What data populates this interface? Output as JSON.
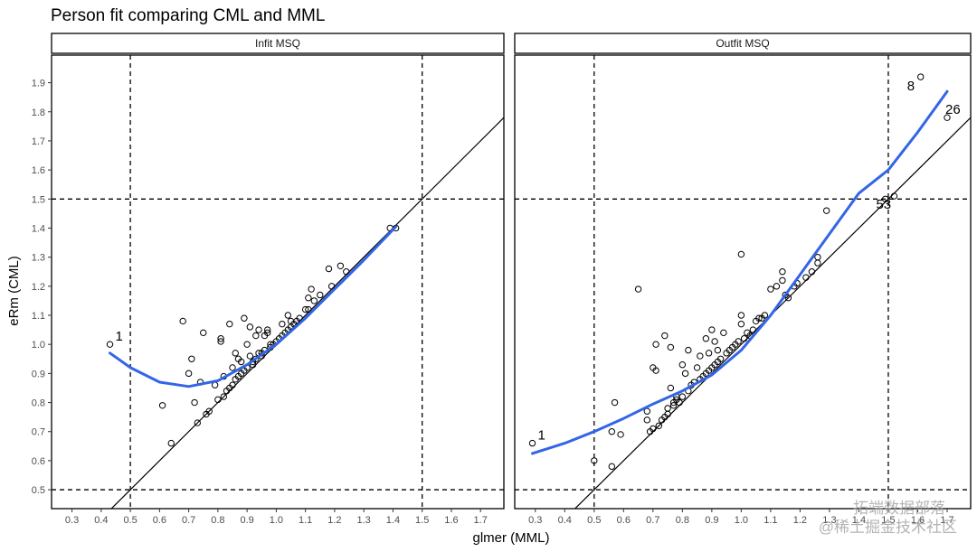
{
  "chart_data": {
    "type": "scatter",
    "title": "Person fit comparing CML and MML",
    "xlabel": "glmer (MML)",
    "ylabel": "eRm (CML)",
    "xlim": [
      0.23,
      1.78
    ],
    "ylim": [
      0.435,
      1.995
    ],
    "xticks": [
      0.3,
      0.4,
      0.5,
      0.6,
      0.7,
      0.8,
      0.9,
      1.0,
      1.1,
      1.2,
      1.3,
      1.4,
      1.5,
      1.6,
      1.7
    ],
    "xtick_labels": [
      "0.3",
      "0.4",
      "0.5",
      "0.6",
      "0.7",
      "0.8",
      "0.9",
      "1.0",
      "1.1",
      "1.2",
      "1.3",
      "1.4",
      "1.5",
      "1.6",
      "1.7"
    ],
    "yticks": [
      0.5,
      0.6,
      0.7,
      0.8,
      0.9,
      1.0,
      1.1,
      1.2,
      1.3,
      1.4,
      1.5,
      1.6,
      1.7,
      1.8,
      1.9
    ],
    "ytick_labels": [
      "0.5",
      "0.6",
      "0.7",
      "0.8",
      "0.9",
      "1.0",
      "1.1",
      "1.2",
      "1.3",
      "1.4",
      "1.5",
      "1.6",
      "1.7",
      "1.8",
      "1.9"
    ],
    "reference_lines": {
      "vertical": [
        0.5,
        1.5
      ],
      "horizontal": [
        0.5,
        1.5
      ],
      "identity": true
    },
    "smooth_color": "#3366e6",
    "panels": [
      {
        "name": "Infit MSQ",
        "points": [
          [
            0.43,
            1.0
          ],
          [
            0.61,
            0.79
          ],
          [
            0.64,
            0.66
          ],
          [
            0.68,
            1.08
          ],
          [
            0.7,
            0.9
          ],
          [
            0.71,
            0.95
          ],
          [
            0.72,
            0.8
          ],
          [
            0.73,
            0.73
          ],
          [
            0.74,
            0.87
          ],
          [
            0.75,
            1.04
          ],
          [
            0.76,
            0.76
          ],
          [
            0.77,
            0.77
          ],
          [
            0.79,
            0.86
          ],
          [
            0.8,
            0.81
          ],
          [
            0.81,
            1.01
          ],
          [
            0.81,
            1.02
          ],
          [
            0.82,
            0.82
          ],
          [
            0.82,
            0.89
          ],
          [
            0.83,
            0.84
          ],
          [
            0.84,
            1.07
          ],
          [
            0.84,
            0.85
          ],
          [
            0.85,
            0.86
          ],
          [
            0.85,
            0.92
          ],
          [
            0.86,
            0.88
          ],
          [
            0.86,
            0.97
          ],
          [
            0.87,
            0.95
          ],
          [
            0.87,
            0.89
          ],
          [
            0.88,
            0.9
          ],
          [
            0.88,
            0.94
          ],
          [
            0.89,
            1.09
          ],
          [
            0.89,
            0.91
          ],
          [
            0.9,
            0.92
          ],
          [
            0.9,
            1.0
          ],
          [
            0.91,
            0.96
          ],
          [
            0.91,
            1.06
          ],
          [
            0.92,
            0.93
          ],
          [
            0.92,
            0.94
          ],
          [
            0.93,
            0.95
          ],
          [
            0.93,
            1.03
          ],
          [
            0.94,
            1.05
          ],
          [
            0.94,
            0.97
          ],
          [
            0.95,
            0.96
          ],
          [
            0.95,
            0.97
          ],
          [
            0.96,
            1.03
          ],
          [
            0.96,
            0.98
          ],
          [
            0.97,
            1.04
          ],
          [
            0.97,
            1.05
          ],
          [
            0.98,
            0.99
          ],
          [
            0.98,
            1.0
          ],
          [
            0.99,
            1.0
          ],
          [
            1.0,
            1.01
          ],
          [
            1.01,
            1.02
          ],
          [
            1.02,
            1.07
          ],
          [
            1.02,
            1.03
          ],
          [
            1.03,
            1.04
          ],
          [
            1.04,
            1.05
          ],
          [
            1.04,
            1.1
          ],
          [
            1.05,
            1.06
          ],
          [
            1.05,
            1.08
          ],
          [
            1.06,
            1.07
          ],
          [
            1.07,
            1.08
          ],
          [
            1.08,
            1.09
          ],
          [
            1.1,
            1.12
          ],
          [
            1.11,
            1.16
          ],
          [
            1.11,
            1.12
          ],
          [
            1.12,
            1.19
          ],
          [
            1.13,
            1.15
          ],
          [
            1.15,
            1.17
          ],
          [
            1.18,
            1.26
          ],
          [
            1.19,
            1.2
          ],
          [
            1.22,
            1.27
          ],
          [
            1.24,
            1.25
          ],
          [
            1.39,
            1.4
          ],
          [
            1.41,
            1.4
          ]
        ],
        "smooth": [
          [
            0.43,
            0.97
          ],
          [
            0.5,
            0.92
          ],
          [
            0.6,
            0.87
          ],
          [
            0.7,
            0.855
          ],
          [
            0.8,
            0.875
          ],
          [
            0.9,
            0.93
          ],
          [
            1.0,
            1.0
          ],
          [
            1.1,
            1.09
          ],
          [
            1.2,
            1.19
          ],
          [
            1.3,
            1.29
          ],
          [
            1.41,
            1.405
          ]
        ],
        "labels": [
          {
            "text": "1",
            "x": 0.43,
            "y": 1.0
          }
        ]
      },
      {
        "name": "Outfit MSQ",
        "points": [
          [
            0.29,
            0.66
          ],
          [
            0.5,
            0.6
          ],
          [
            0.56,
            0.58
          ],
          [
            0.56,
            0.7
          ],
          [
            0.57,
            0.8
          ],
          [
            0.59,
            0.69
          ],
          [
            0.65,
            1.19
          ],
          [
            0.68,
            0.77
          ],
          [
            0.68,
            0.74
          ],
          [
            0.69,
            0.7
          ],
          [
            0.7,
            0.92
          ],
          [
            0.7,
            0.71
          ],
          [
            0.71,
            0.91
          ],
          [
            0.71,
            1.0
          ],
          [
            0.72,
            0.72
          ],
          [
            0.73,
            0.74
          ],
          [
            0.74,
            1.03
          ],
          [
            0.74,
            0.75
          ],
          [
            0.75,
            0.76
          ],
          [
            0.75,
            0.78
          ],
          [
            0.76,
            0.85
          ],
          [
            0.76,
            0.99
          ],
          [
            0.77,
            0.79
          ],
          [
            0.77,
            0.8
          ],
          [
            0.78,
            0.81
          ],
          [
            0.78,
            0.82
          ],
          [
            0.79,
            0.8
          ],
          [
            0.8,
            0.82
          ],
          [
            0.8,
            0.93
          ],
          [
            0.81,
            0.9
          ],
          [
            0.82,
            0.84
          ],
          [
            0.82,
            0.98
          ],
          [
            0.83,
            0.86
          ],
          [
            0.84,
            0.87
          ],
          [
            0.85,
            0.92
          ],
          [
            0.86,
            0.88
          ],
          [
            0.86,
            0.96
          ],
          [
            0.87,
            0.89
          ],
          [
            0.88,
            0.9
          ],
          [
            0.88,
            1.02
          ],
          [
            0.89,
            0.91
          ],
          [
            0.89,
            0.97
          ],
          [
            0.9,
            1.05
          ],
          [
            0.9,
            0.92
          ],
          [
            0.91,
            0.93
          ],
          [
            0.91,
            1.01
          ],
          [
            0.92,
            0.94
          ],
          [
            0.92,
            0.98
          ],
          [
            0.93,
            0.95
          ],
          [
            0.94,
            1.04
          ],
          [
            0.95,
            0.97
          ],
          [
            0.96,
            0.98
          ],
          [
            0.97,
            0.99
          ],
          [
            0.98,
            1.0
          ],
          [
            0.99,
            1.01
          ],
          [
            1.0,
            1.31
          ],
          [
            1.0,
            1.1
          ],
          [
            1.0,
            1.07
          ],
          [
            1.01,
            1.02
          ],
          [
            1.02,
            1.04
          ],
          [
            1.03,
            1.03
          ],
          [
            1.04,
            1.05
          ],
          [
            1.05,
            1.08
          ],
          [
            1.06,
            1.09
          ],
          [
            1.07,
            1.09
          ],
          [
            1.08,
            1.1
          ],
          [
            1.1,
            1.19
          ],
          [
            1.12,
            1.2
          ],
          [
            1.14,
            1.22
          ],
          [
            1.14,
            1.25
          ],
          [
            1.15,
            1.17
          ],
          [
            1.16,
            1.16
          ],
          [
            1.18,
            1.2
          ],
          [
            1.19,
            1.21
          ],
          [
            1.22,
            1.23
          ],
          [
            1.24,
            1.25
          ],
          [
            1.26,
            1.28
          ],
          [
            1.26,
            1.3
          ],
          [
            1.29,
            1.46
          ],
          [
            1.49,
            1.5
          ],
          [
            1.52,
            1.51
          ],
          [
            1.61,
            1.92
          ],
          [
            1.7,
            1.78
          ]
        ],
        "smooth": [
          [
            0.29,
            0.625
          ],
          [
            0.4,
            0.66
          ],
          [
            0.5,
            0.7
          ],
          [
            0.6,
            0.745
          ],
          [
            0.7,
            0.795
          ],
          [
            0.8,
            0.84
          ],
          [
            0.9,
            0.895
          ],
          [
            1.0,
            0.98
          ],
          [
            1.1,
            1.1
          ],
          [
            1.2,
            1.24
          ],
          [
            1.3,
            1.38
          ],
          [
            1.4,
            1.52
          ],
          [
            1.5,
            1.6
          ],
          [
            1.6,
            1.73
          ],
          [
            1.7,
            1.87
          ]
        ],
        "labels": [
          {
            "text": "1",
            "x": 0.29,
            "y": 0.66
          },
          {
            "text": "8",
            "x": 1.61,
            "y": 1.92
          },
          {
            "text": "26",
            "x": 1.7,
            "y": 1.78
          },
          {
            "text": "53",
            "x": 1.52,
            "y": 1.51
          }
        ]
      }
    ]
  },
  "watermark": {
    "line1": "拓端数据部落",
    "line2": "@稀土掘金技术社区"
  }
}
